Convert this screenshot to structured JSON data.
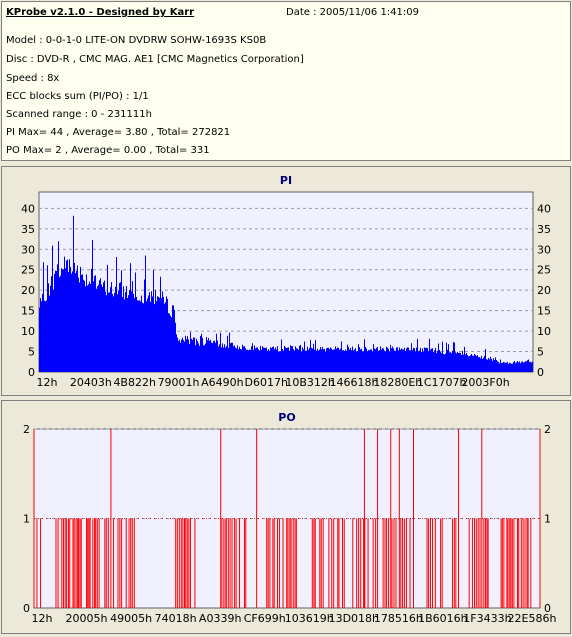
{
  "header": {
    "title": "KProbe v2.1.0 - Designed by Karr",
    "date": "Date : 2005/11/06 1:41:09",
    "lines": [
      "Model : 0-0-1-0 LITE-ON DVDRW SOHW-1693S KS0B",
      "Disc : DVD-R , CMC MAG. AE1 [CMC Magnetics Corporation]",
      "Speed : 8x",
      "ECC blocks sum (PI/PO) : 1/1",
      "Scanned range : 0 - 231111h",
      "PI Max= 44 , Average= 3.80 , Total= 272821",
      "PO Max= 2 , Average= 0.00 , Total= 331"
    ]
  },
  "colors": {
    "pi": "#0000ff",
    "po": "#ff0000",
    "plot_bg": "#f0f0ff",
    "grid": "#9a9ab0"
  },
  "chart_data": [
    {
      "type": "area",
      "title": "PI",
      "x_tick_labels": [
        "12h",
        "20403h",
        "4B822h",
        "79001h",
        "A6490h",
        "D6017h",
        "10B312h",
        "146618h",
        "18280Eh",
        "1C1707h",
        "2003F0h"
      ],
      "y_ticks": [
        0,
        5,
        10,
        15,
        20,
        25,
        30,
        35,
        40
      ],
      "ylim": [
        0,
        44
      ],
      "x_range": [
        0,
        1
      ],
      "envelope_peaks": {
        "x": [
          0,
          0.01,
          0.03,
          0.06,
          0.08,
          0.11,
          0.14,
          0.17,
          0.2,
          0.24,
          0.27,
          0.28,
          0.3,
          0.33,
          0.36,
          0.4,
          0.45,
          0.5,
          0.55,
          0.6,
          0.65,
          0.7,
          0.75,
          0.8,
          0.85,
          0.9,
          0.93,
          0.96,
          1.0
        ],
        "y": [
          22,
          28,
          35,
          44,
          37,
          32,
          30,
          30,
          29,
          28,
          24,
          12,
          13,
          14,
          11,
          10,
          9,
          9,
          9,
          8,
          9,
          9,
          8,
          9,
          7,
          6,
          4,
          4,
          4
        ]
      },
      "typical_level": {
        "x": [
          0,
          0.03,
          0.06,
          0.1,
          0.15,
          0.2,
          0.25,
          0.27,
          0.28,
          0.35,
          0.45,
          0.55,
          0.65,
          0.75,
          0.85,
          0.9,
          0.93,
          1.0
        ],
        "y": [
          15,
          20,
          24,
          20,
          18,
          17,
          16,
          13,
          7,
          6,
          5,
          5,
          5,
          5,
          4,
          3,
          2,
          2
        ]
      }
    },
    {
      "type": "bar",
      "title": "PO",
      "x_tick_labels": [
        "12h",
        "20005h",
        "49005h",
        "74018h",
        "A0339h",
        "CF699h",
        "103619h",
        "13D018h",
        "178516h",
        "1B6016h",
        "1F3433h",
        "22E586h"
      ],
      "y_ticks": [
        0,
        1,
        2
      ],
      "ylim": [
        0,
        2
      ],
      "x_range": [
        0,
        1
      ],
      "spikes_value_2": [
        0.0,
        0.152,
        0.369,
        0.44,
        0.653,
        0.679,
        0.705,
        0.722,
        0.75,
        0.839,
        0.885,
        1.0
      ],
      "value_1_bands": [
        [
          0.0,
          0.02
        ],
        [
          0.04,
          0.13
        ],
        [
          0.14,
          0.2
        ],
        [
          0.28,
          0.32
        ],
        [
          0.37,
          0.42
        ],
        [
          0.46,
          0.52
        ],
        [
          0.55,
          0.62
        ],
        [
          0.63,
          0.68
        ],
        [
          0.69,
          0.75
        ],
        [
          0.77,
          0.84
        ],
        [
          0.86,
          0.9
        ],
        [
          0.92,
          0.99
        ]
      ]
    }
  ]
}
